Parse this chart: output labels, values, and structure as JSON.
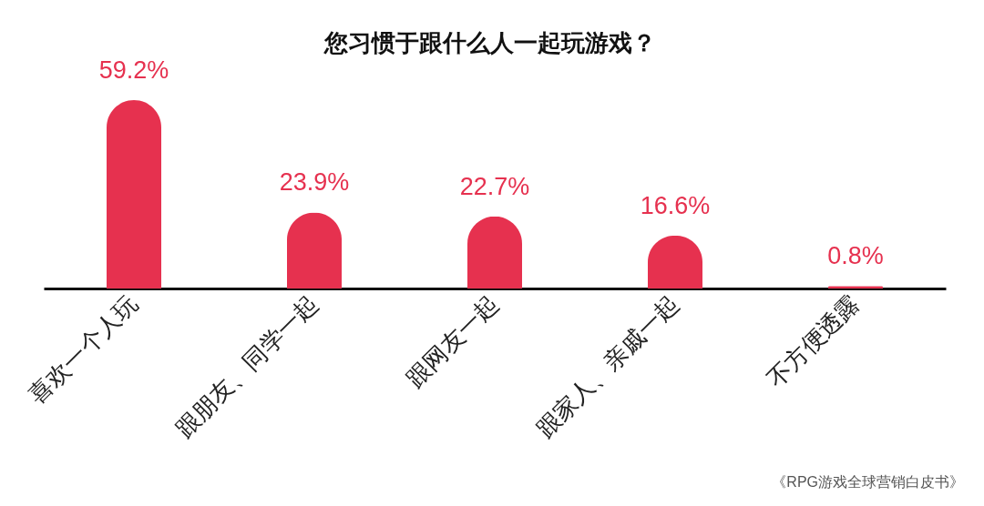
{
  "chart_data": {
    "type": "bar",
    "title": "您习惯于跟什么人一起玩游戏？",
    "categories": [
      "喜欢一个人玩",
      "跟朋友、同学一起",
      "跟网友一起",
      "跟家人、亲戚一起",
      "不方便透露"
    ],
    "values": [
      59.2,
      23.9,
      22.7,
      16.6,
      0.8
    ],
    "value_labels": [
      "59.2%",
      "23.9%",
      "22.7%",
      "16.6%",
      "0.8%"
    ],
    "color": "#e6314f",
    "annotations": [
      "《RPG游戏全球营销白皮书》"
    ],
    "grid": false
  }
}
